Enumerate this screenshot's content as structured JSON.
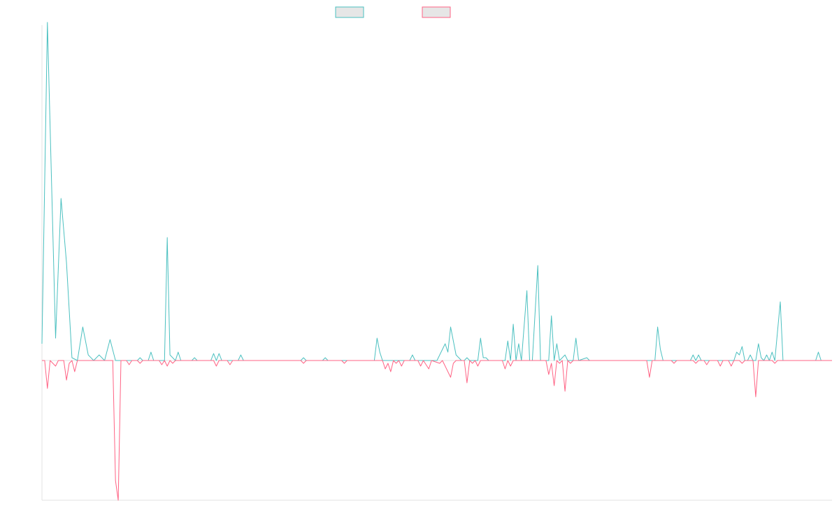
{
  "chart_data": {
    "type": "line",
    "title": "",
    "xlabel": "",
    "ylabel": "",
    "grid": false,
    "legend_placement": "top-center",
    "legend_labels_visible": false,
    "x_count": 280,
    "ylim": [
      -50,
      120
    ],
    "baseline": 0,
    "series": [
      {
        "color": "#4bc0c0",
        "legend_fill": "#e6e6e6",
        "points": [
          [
            0,
            6
          ],
          [
            2,
            121
          ],
          [
            5,
            8
          ],
          [
            7,
            58
          ],
          [
            9,
            35
          ],
          [
            11,
            1
          ],
          [
            13,
            0
          ],
          [
            15,
            12
          ],
          [
            17,
            2
          ],
          [
            19,
            0
          ],
          [
            21,
            2
          ],
          [
            23,
            0
          ],
          [
            25,
            7.5
          ],
          [
            27,
            0
          ],
          [
            35,
            0
          ],
          [
            36,
            1
          ],
          [
            37,
            0
          ],
          [
            39,
            0
          ],
          [
            40,
            3
          ],
          [
            41,
            0
          ],
          [
            45,
            0
          ],
          [
            46,
            44
          ],
          [
            47,
            2
          ],
          [
            49,
            0
          ],
          [
            50,
            3
          ],
          [
            51,
            0
          ],
          [
            55,
            0
          ],
          [
            56,
            1
          ],
          [
            57,
            0
          ],
          [
            62,
            0
          ],
          [
            63,
            2.5
          ],
          [
            64,
            0
          ],
          [
            65,
            2.5
          ],
          [
            66,
            0
          ],
          [
            72,
            0
          ],
          [
            73,
            2
          ],
          [
            74,
            0
          ],
          [
            95,
            0
          ],
          [
            96,
            1
          ],
          [
            97,
            0
          ],
          [
            103,
            0
          ],
          [
            104,
            1
          ],
          [
            105,
            0
          ],
          [
            122,
            0
          ],
          [
            123,
            8
          ],
          [
            124,
            3
          ],
          [
            125,
            0
          ],
          [
            135,
            0
          ],
          [
            136,
            2
          ],
          [
            137,
            0
          ],
          [
            145,
            0
          ],
          [
            148,
            6
          ],
          [
            149,
            3
          ],
          [
            150,
            12
          ],
          [
            152,
            2
          ],
          [
            154,
            0
          ],
          [
            155,
            0
          ],
          [
            156,
            1
          ],
          [
            157,
            0
          ],
          [
            160,
            0
          ],
          [
            161,
            8
          ],
          [
            162,
            1
          ],
          [
            163,
            1
          ],
          [
            164,
            0
          ],
          [
            170,
            0
          ],
          [
            171,
            7
          ],
          [
            172,
            0
          ],
          [
            173,
            13
          ],
          [
            174,
            0
          ],
          [
            175,
            6
          ],
          [
            176,
            0
          ],
          [
            178,
            25
          ],
          [
            179,
            0
          ],
          [
            180,
            0
          ],
          [
            182,
            34
          ],
          [
            183,
            0
          ],
          [
            186,
            0
          ],
          [
            187,
            16
          ],
          [
            188,
            0
          ],
          [
            189,
            6
          ],
          [
            190,
            0
          ],
          [
            192,
            2
          ],
          [
            193,
            0
          ],
          [
            195,
            0
          ],
          [
            196,
            8
          ],
          [
            197,
            0
          ],
          [
            200,
            1
          ],
          [
            201,
            0
          ],
          [
            225,
            0
          ],
          [
            226,
            12
          ],
          [
            227,
            4
          ],
          [
            228,
            0
          ],
          [
            238,
            0
          ],
          [
            239,
            2
          ],
          [
            240,
            0
          ],
          [
            241,
            2
          ],
          [
            242,
            0
          ],
          [
            254,
            0
          ],
          [
            255,
            3
          ],
          [
            256,
            2
          ],
          [
            257,
            5
          ],
          [
            258,
            0
          ],
          [
            259,
            0
          ],
          [
            260,
            2
          ],
          [
            261,
            0
          ],
          [
            262,
            0
          ],
          [
            263,
            6
          ],
          [
            264,
            1
          ],
          [
            265,
            0
          ],
          [
            266,
            2
          ],
          [
            267,
            0
          ],
          [
            268,
            3
          ],
          [
            269,
            0
          ],
          [
            271,
            21
          ],
          [
            272,
            0
          ],
          [
            284,
            0
          ],
          [
            285,
            3
          ],
          [
            286,
            0
          ],
          [
            290,
            0
          ]
        ]
      },
      {
        "color": "#ff6384",
        "legend_fill": "#e6e6e6",
        "points": [
          [
            0,
            0
          ],
          [
            1,
            0
          ],
          [
            2,
            -10
          ],
          [
            3,
            0
          ],
          [
            4,
            -1
          ],
          [
            5,
            -2
          ],
          [
            6,
            0
          ],
          [
            8,
            0
          ],
          [
            9,
            -7
          ],
          [
            10,
            -1
          ],
          [
            11,
            0
          ],
          [
            12,
            -4
          ],
          [
            13,
            0
          ],
          [
            15,
            0
          ],
          [
            26,
            0
          ],
          [
            27,
            -43
          ],
          [
            28,
            -50
          ],
          [
            29,
            0
          ],
          [
            31,
            0
          ],
          [
            32,
            -1.5
          ],
          [
            33,
            0
          ],
          [
            35,
            0
          ],
          [
            36,
            -1
          ],
          [
            37,
            0
          ],
          [
            43,
            0
          ],
          [
            44,
            -1.5
          ],
          [
            45,
            0
          ],
          [
            46,
            -2
          ],
          [
            47,
            0
          ],
          [
            48,
            -1
          ],
          [
            49,
            0
          ],
          [
            60,
            0
          ],
          [
            63,
            0
          ],
          [
            64,
            -2
          ],
          [
            65,
            0
          ],
          [
            68,
            0
          ],
          [
            69,
            -1.5
          ],
          [
            70,
            0
          ],
          [
            95,
            0
          ],
          [
            96,
            -1
          ],
          [
            97,
            0
          ],
          [
            110,
            0
          ],
          [
            111,
            -1
          ],
          [
            112,
            0
          ],
          [
            125,
            0
          ],
          [
            126,
            -3
          ],
          [
            127,
            -1
          ],
          [
            128,
            -4
          ],
          [
            129,
            0
          ],
          [
            130,
            -1
          ],
          [
            131,
            0
          ],
          [
            132,
            -2
          ],
          [
            133,
            0
          ],
          [
            138,
            0
          ],
          [
            139,
            -2
          ],
          [
            140,
            0
          ],
          [
            142,
            -3
          ],
          [
            143,
            0
          ],
          [
            146,
            -1
          ],
          [
            147,
            0
          ],
          [
            150,
            -6
          ],
          [
            151,
            -1
          ],
          [
            152,
            0
          ],
          [
            155,
            0
          ],
          [
            156,
            -8
          ],
          [
            157,
            0
          ],
          [
            158,
            -1
          ],
          [
            159,
            0
          ],
          [
            160,
            -2
          ],
          [
            161,
            0
          ],
          [
            169,
            0
          ],
          [
            170,
            -3
          ],
          [
            171,
            0
          ],
          [
            172,
            -2
          ],
          [
            173,
            0
          ],
          [
            185,
            0
          ],
          [
            186,
            -5
          ],
          [
            187,
            -1
          ],
          [
            188,
            -9
          ],
          [
            189,
            0
          ],
          [
            190,
            -1
          ],
          [
            191,
            0
          ],
          [
            192,
            -11
          ],
          [
            193,
            0
          ],
          [
            194,
            -1
          ],
          [
            195,
            0
          ],
          [
            222,
            0
          ],
          [
            223,
            -6
          ],
          [
            224,
            0
          ],
          [
            231,
            0
          ],
          [
            232,
            -1
          ],
          [
            233,
            0
          ],
          [
            239,
            0
          ],
          [
            240,
            -1
          ],
          [
            241,
            0
          ],
          [
            243,
            0
          ],
          [
            244,
            -1.5
          ],
          [
            245,
            0
          ],
          [
            248,
            0
          ],
          [
            249,
            -2
          ],
          [
            250,
            0
          ],
          [
            252,
            0
          ],
          [
            253,
            -2
          ],
          [
            254,
            0
          ],
          [
            256,
            0
          ],
          [
            257,
            -1
          ],
          [
            258,
            0
          ],
          [
            261,
            0
          ],
          [
            262,
            -13
          ],
          [
            263,
            0
          ],
          [
            268,
            0
          ],
          [
            269,
            -1
          ],
          [
            270,
            0
          ],
          [
            290,
            0
          ]
        ]
      }
    ]
  }
}
